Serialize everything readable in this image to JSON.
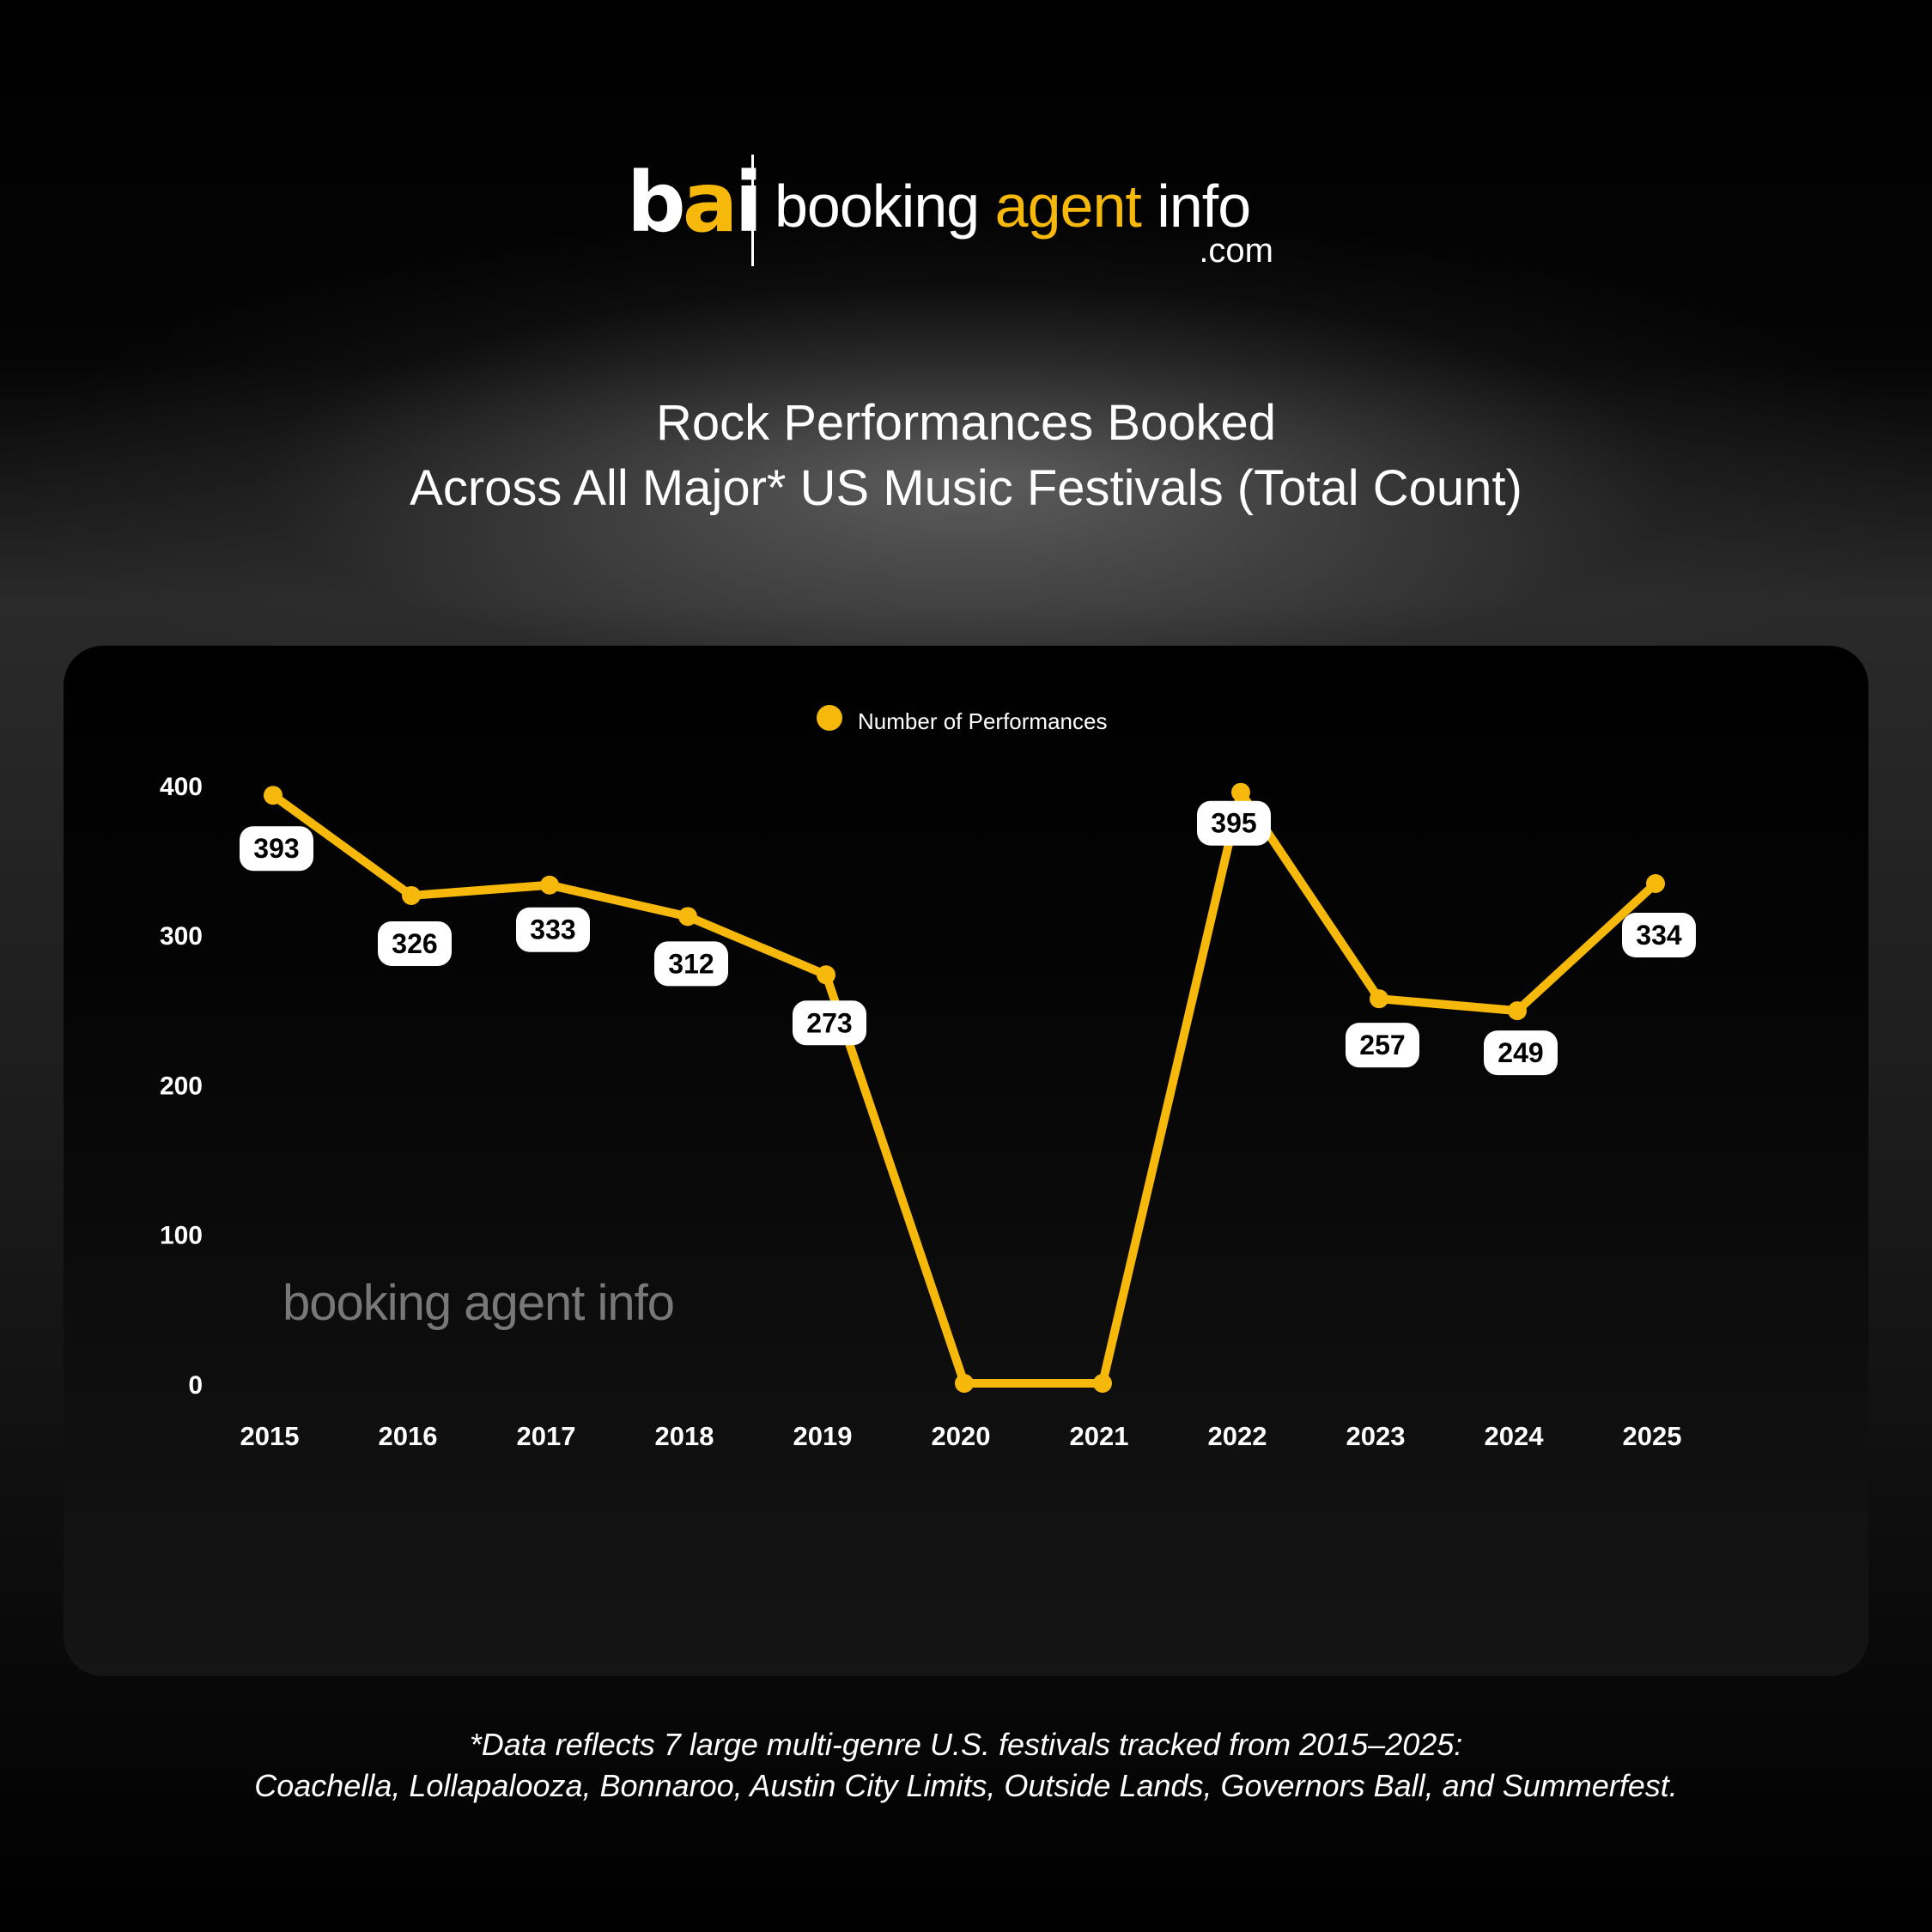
{
  "logo": {
    "mark_b": "b",
    "mark_a": "a",
    "mark_i": "i",
    "word_booking": "booking ",
    "word_agent": "agent",
    "word_info": " info",
    "domain": ".com"
  },
  "title": {
    "line1": "Rock Performances Booked",
    "line2": "Across All Major* US Music Festivals (Total Count)"
  },
  "watermark": "booking agent info",
  "footnote": {
    "line1": "*Data reflects 7 large multi-genre U.S. festivals tracked from 2015–2025:",
    "line2": "Coachella, Lollapalooza, Bonnaroo, Austin City Limits, Outside Lands, Governors Ball, and Summerfest."
  },
  "colors": {
    "accent": "#f6b80b",
    "label_bg": "#ffffff",
    "label_text": "#000000"
  },
  "chart_data": {
    "type": "line",
    "title": "Rock Performances Booked Across All Major* US Music Festivals (Total Count)",
    "xlabel": "",
    "ylabel": "",
    "x": [
      "2015",
      "2016",
      "2017",
      "2018",
      "2019",
      "2020",
      "2021",
      "2022",
      "2023",
      "2024",
      "2025"
    ],
    "series": [
      {
        "name": "Number of Performances",
        "values": [
          393,
          326,
          333,
          312,
          273,
          0,
          0,
          395,
          257,
          249,
          334
        ],
        "labels": [
          "393",
          "326",
          "333",
          "312",
          "273",
          "",
          "",
          "395",
          "257",
          "249",
          "334"
        ]
      }
    ],
    "ylim": [
      0,
      400
    ],
    "yticks": [
      0,
      100,
      200,
      300,
      400
    ],
    "grid": false,
    "legend": "top-center"
  }
}
